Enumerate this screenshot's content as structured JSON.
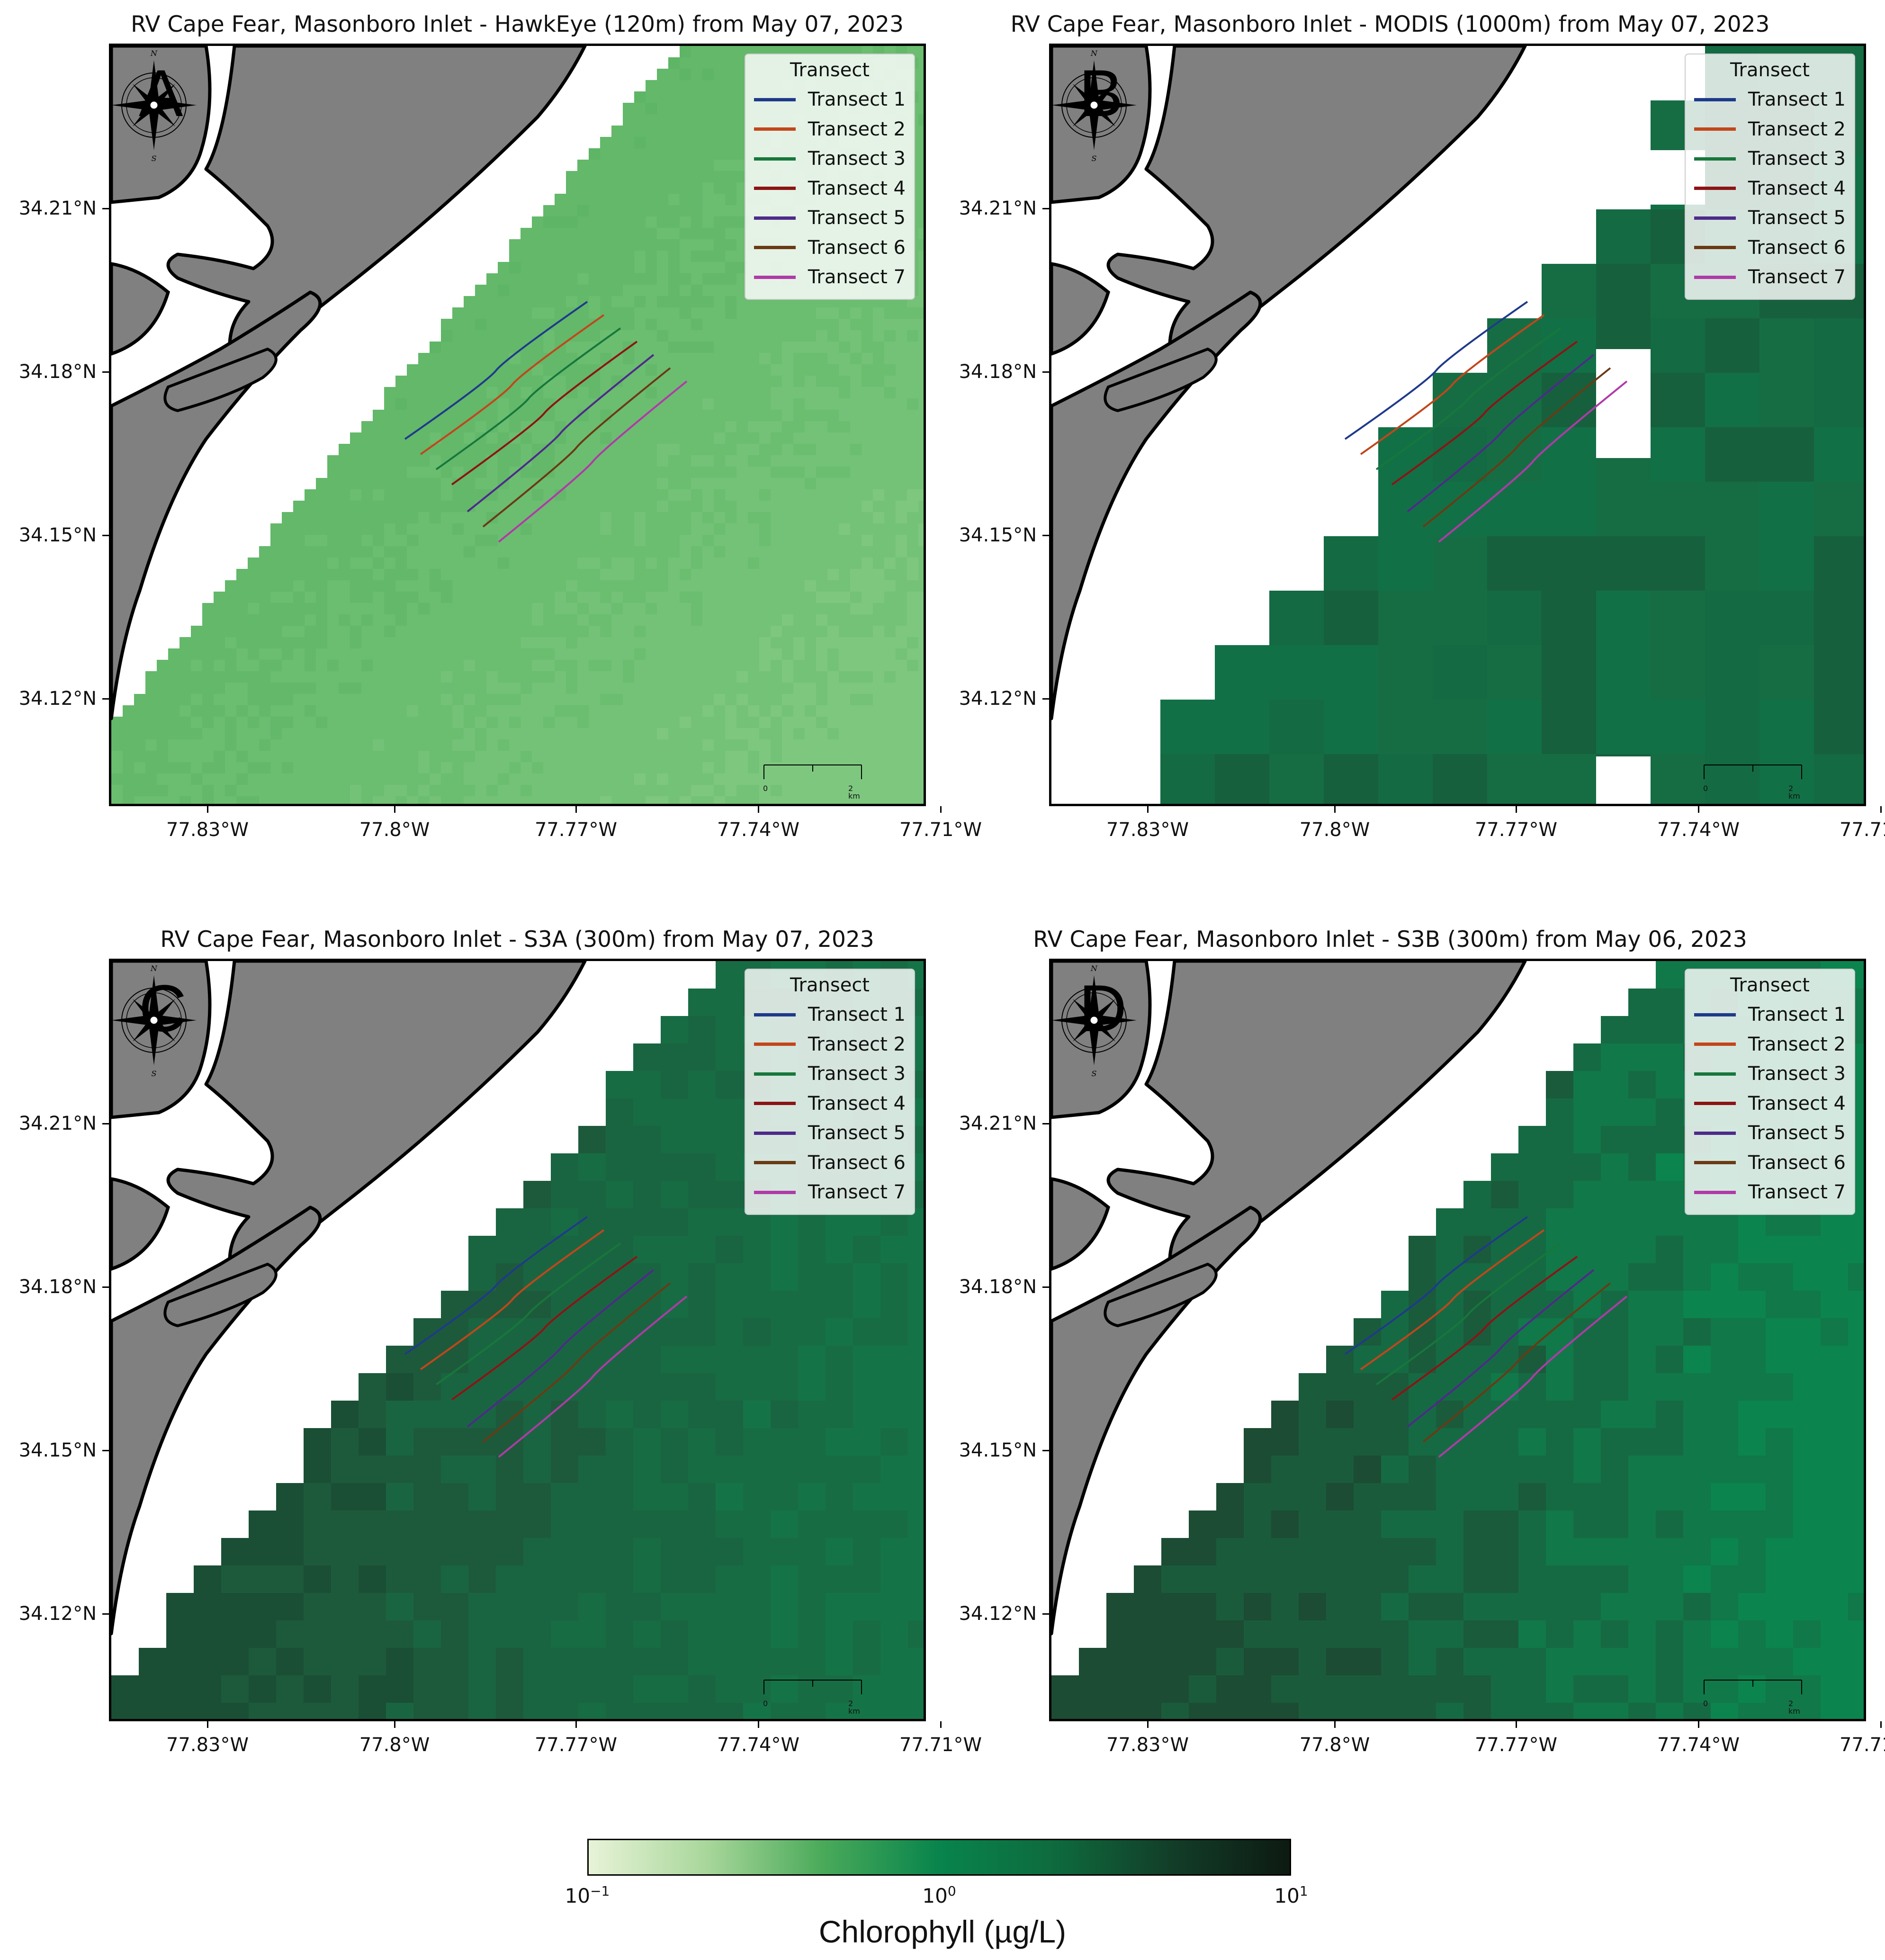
{
  "figure": {
    "colorbar": {
      "label": "Chlorophyll (µg/L)",
      "scale": "log",
      "range": [
        0.1,
        10
      ],
      "ticks": [
        {
          "base": "10",
          "exp": "−1"
        },
        {
          "base": "10",
          "exp": "0"
        },
        {
          "base": "10",
          "exp": "1"
        }
      ],
      "colors": [
        "#e8f3d8",
        "#a9d79b",
        "#4aaa5a",
        "#08844c",
        "#0e6a3e",
        "#123d28",
        "#0d1a12"
      ]
    },
    "axes": {
      "lat_ticks": [
        "34.21°N",
        "34.18°N",
        "34.15°N",
        "34.12°N"
      ],
      "lon_ticks": [
        "77.83°W",
        "77.8°W",
        "77.77°W",
        "77.74°W",
        "77.71°W"
      ]
    },
    "legend": {
      "title": "Transect",
      "items": [
        {
          "label": "Transect 1",
          "color": "#1f3a8a"
        },
        {
          "label": "Transect 2",
          "color": "#c2461b"
        },
        {
          "label": "Transect 3",
          "color": "#17773b"
        },
        {
          "label": "Transect 4",
          "color": "#8c1414"
        },
        {
          "label": "Transect 5",
          "color": "#4e2a8a"
        },
        {
          "label": "Transect 6",
          "color": "#6b3a14"
        },
        {
          "label": "Transect 7",
          "color": "#b03aa8"
        }
      ]
    },
    "scalebar": {
      "start": "0",
      "end": "2 km"
    },
    "compass": {
      "n": "N",
      "s": "S",
      "e": "E",
      "w": "W"
    },
    "land_color": "#808080",
    "panels": [
      {
        "letter": "A",
        "title": "RV Cape Fear, Masonboro Inlet - HawkEye (120m) from May 07, 2023",
        "sensor": "HawkEye",
        "chl_level": "low",
        "water_colors": [
          "#56b260",
          "#5db565",
          "#63b86a",
          "#6bbd70",
          "#74c277",
          "#7ec77f"
        ]
      },
      {
        "letter": "B",
        "title": "RV Cape Fear, Masonboro Inlet - MODIS (1000m) from May 07, 2023",
        "sensor": "MODIS",
        "chl_level": "high",
        "water_colors": [
          "#146a42",
          "#166d44",
          "#127046",
          "#17603d"
        ]
      },
      {
        "letter": "C",
        "title": "RV Cape Fear, Masonboro Inlet - S3A (300m) from May 07, 2023",
        "sensor": "S3A",
        "chl_level": "high",
        "water_colors": [
          "#1a4f35",
          "#1d5a3b",
          "#1a6541",
          "#176c44",
          "#157447"
        ]
      },
      {
        "letter": "D",
        "title": "RV Cape Fear, Masonboro Inlet - S3B (300m) from May 06, 2023",
        "sensor": "S3B",
        "chl_level": "medium-high",
        "water_colors": [
          "#1c4c33",
          "#1a5b3c",
          "#166a43",
          "#117849",
          "#0b844e"
        ]
      }
    ]
  }
}
